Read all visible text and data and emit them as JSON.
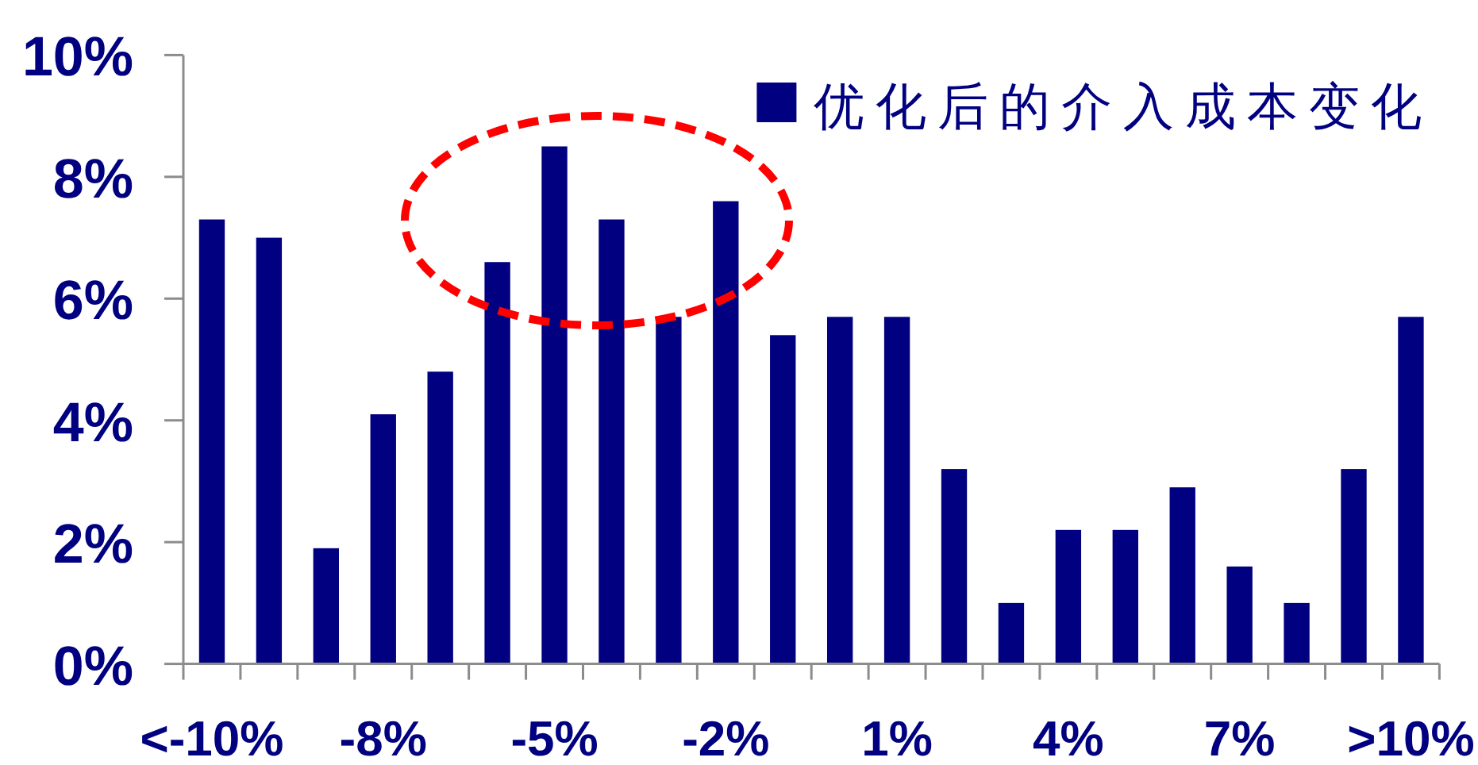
{
  "chart_data": {
    "type": "bar",
    "categories": [
      "<-10%",
      null,
      null,
      "-8%",
      null,
      null,
      "-5%",
      null,
      null,
      "-2%",
      null,
      null,
      "1%",
      null,
      null,
      "4%",
      null,
      null,
      "7%",
      null,
      null,
      ">10%"
    ],
    "series": [
      {
        "name": "优化后的介入成本变化",
        "color": "#000080",
        "values": [
          7.3,
          7.0,
          1.9,
          4.1,
          4.8,
          6.6,
          8.5,
          7.3,
          5.7,
          7.6,
          5.4,
          5.7,
          5.7,
          3.2,
          1.0,
          2.2,
          2.2,
          2.9,
          1.6,
          1.0,
          3.2,
          5.7
        ]
      }
    ],
    "ylim": [
      0,
      10
    ],
    "yticks": [
      {
        "value": 0,
        "label": "0%"
      },
      {
        "value": 2,
        "label": "2%"
      },
      {
        "value": 4,
        "label": "4%"
      },
      {
        "value": 6,
        "label": "6%"
      },
      {
        "value": 8,
        "label": "8%"
      },
      {
        "value": 10,
        "label": "10%"
      }
    ],
    "legend": "top right"
  }
}
